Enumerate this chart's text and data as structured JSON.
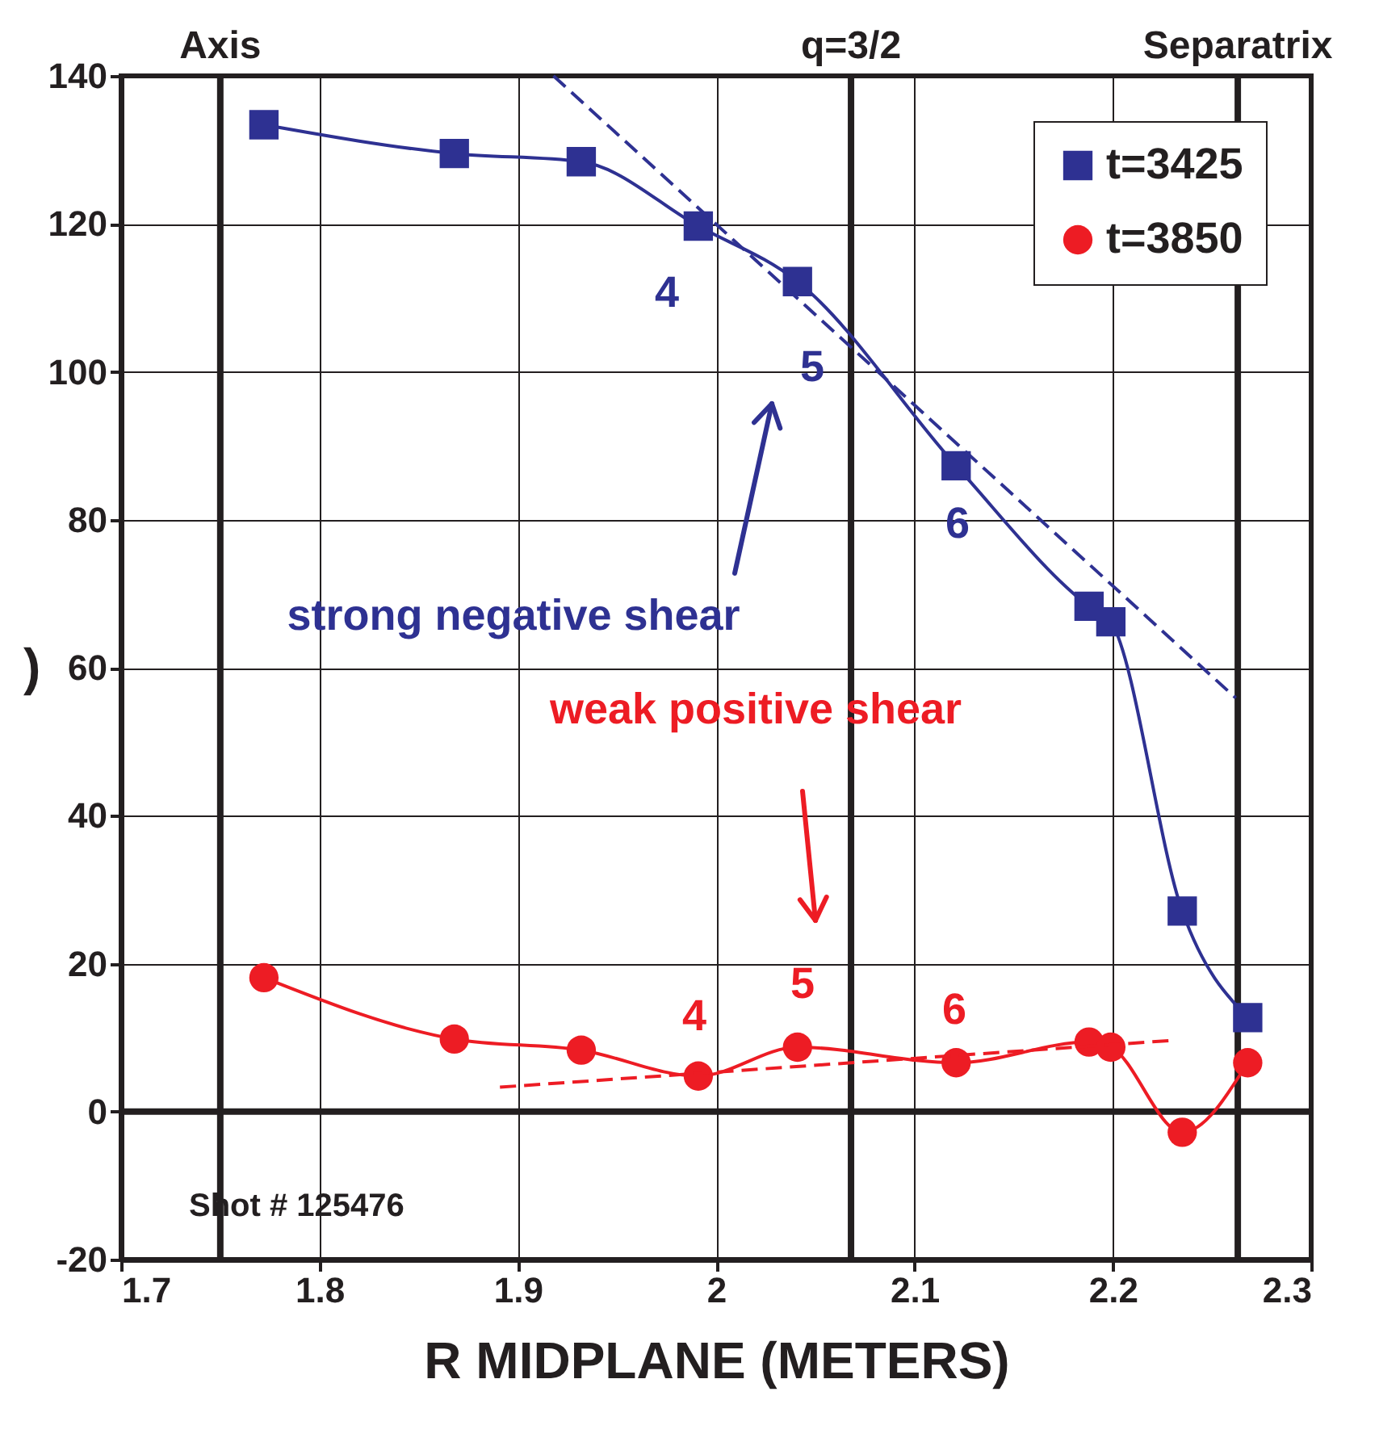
{
  "chart_data": {
    "type": "line",
    "xlabel": "R MIDPLANE (METERS)",
    "ylabel": ")",
    "xlim": [
      1.7,
      2.3
    ],
    "xticks": [
      1.7,
      1.8,
      1.9,
      2,
      2.1,
      2.2,
      2.3
    ],
    "ylim": [
      -20,
      140
    ],
    "yticks": [
      -20,
      0,
      20,
      40,
      60,
      80,
      100,
      120,
      140
    ],
    "grid": true,
    "legend": "top right",
    "series": [
      {
        "name": "t=3425",
        "color": "#2e3192",
        "marker": "square",
        "x": [
          1.772,
          1.868,
          1.932,
          1.991,
          2.041,
          2.121,
          2.188,
          2.199,
          2.235,
          2.268
        ],
        "values": [
          133.4,
          129.5,
          128.4,
          119.7,
          112.2,
          87.3,
          68.3,
          66.2,
          27.1,
          12.7
        ]
      },
      {
        "name": "t=3850",
        "color": "#ed1c24",
        "marker": "circle",
        "x": [
          1.772,
          1.868,
          1.932,
          1.991,
          2.041,
          2.121,
          2.188,
          2.199,
          2.235,
          2.268
        ],
        "values": [
          18.1,
          9.8,
          8.3,
          4.8,
          8.7,
          6.6,
          9.4,
          8.7,
          -2.8,
          6.6
        ]
      },
      {
        "type": "line",
        "color": "#2e3192",
        "line_style": "dashed",
        "x": [
          1.918,
          2.262
        ],
        "values": [
          140,
          55.9
        ]
      },
      {
        "type": "line",
        "color": "#ed1c24",
        "line_style": "dashed",
        "x": [
          1.891,
          2.229
        ],
        "values": [
          3.3,
          9.6
        ]
      }
    ],
    "ref_lines": [
      {
        "axis": "x",
        "value": 1.75,
        "label": "Axis",
        "color": "#231f20"
      },
      {
        "axis": "x",
        "value": 2.068,
        "label": "q=3/2",
        "color": "#231f20"
      },
      {
        "axis": "x",
        "value": 2.263,
        "label": "Separatrix",
        "color": "#231f20"
      },
      {
        "axis": "y",
        "value": 0,
        "color": "#231f20"
      }
    ],
    "annotations": [
      "4",
      "5",
      "6",
      "4",
      "5",
      "6",
      "strong negative shear",
      "weak positive shear",
      "Shot # 125476"
    ]
  }
}
